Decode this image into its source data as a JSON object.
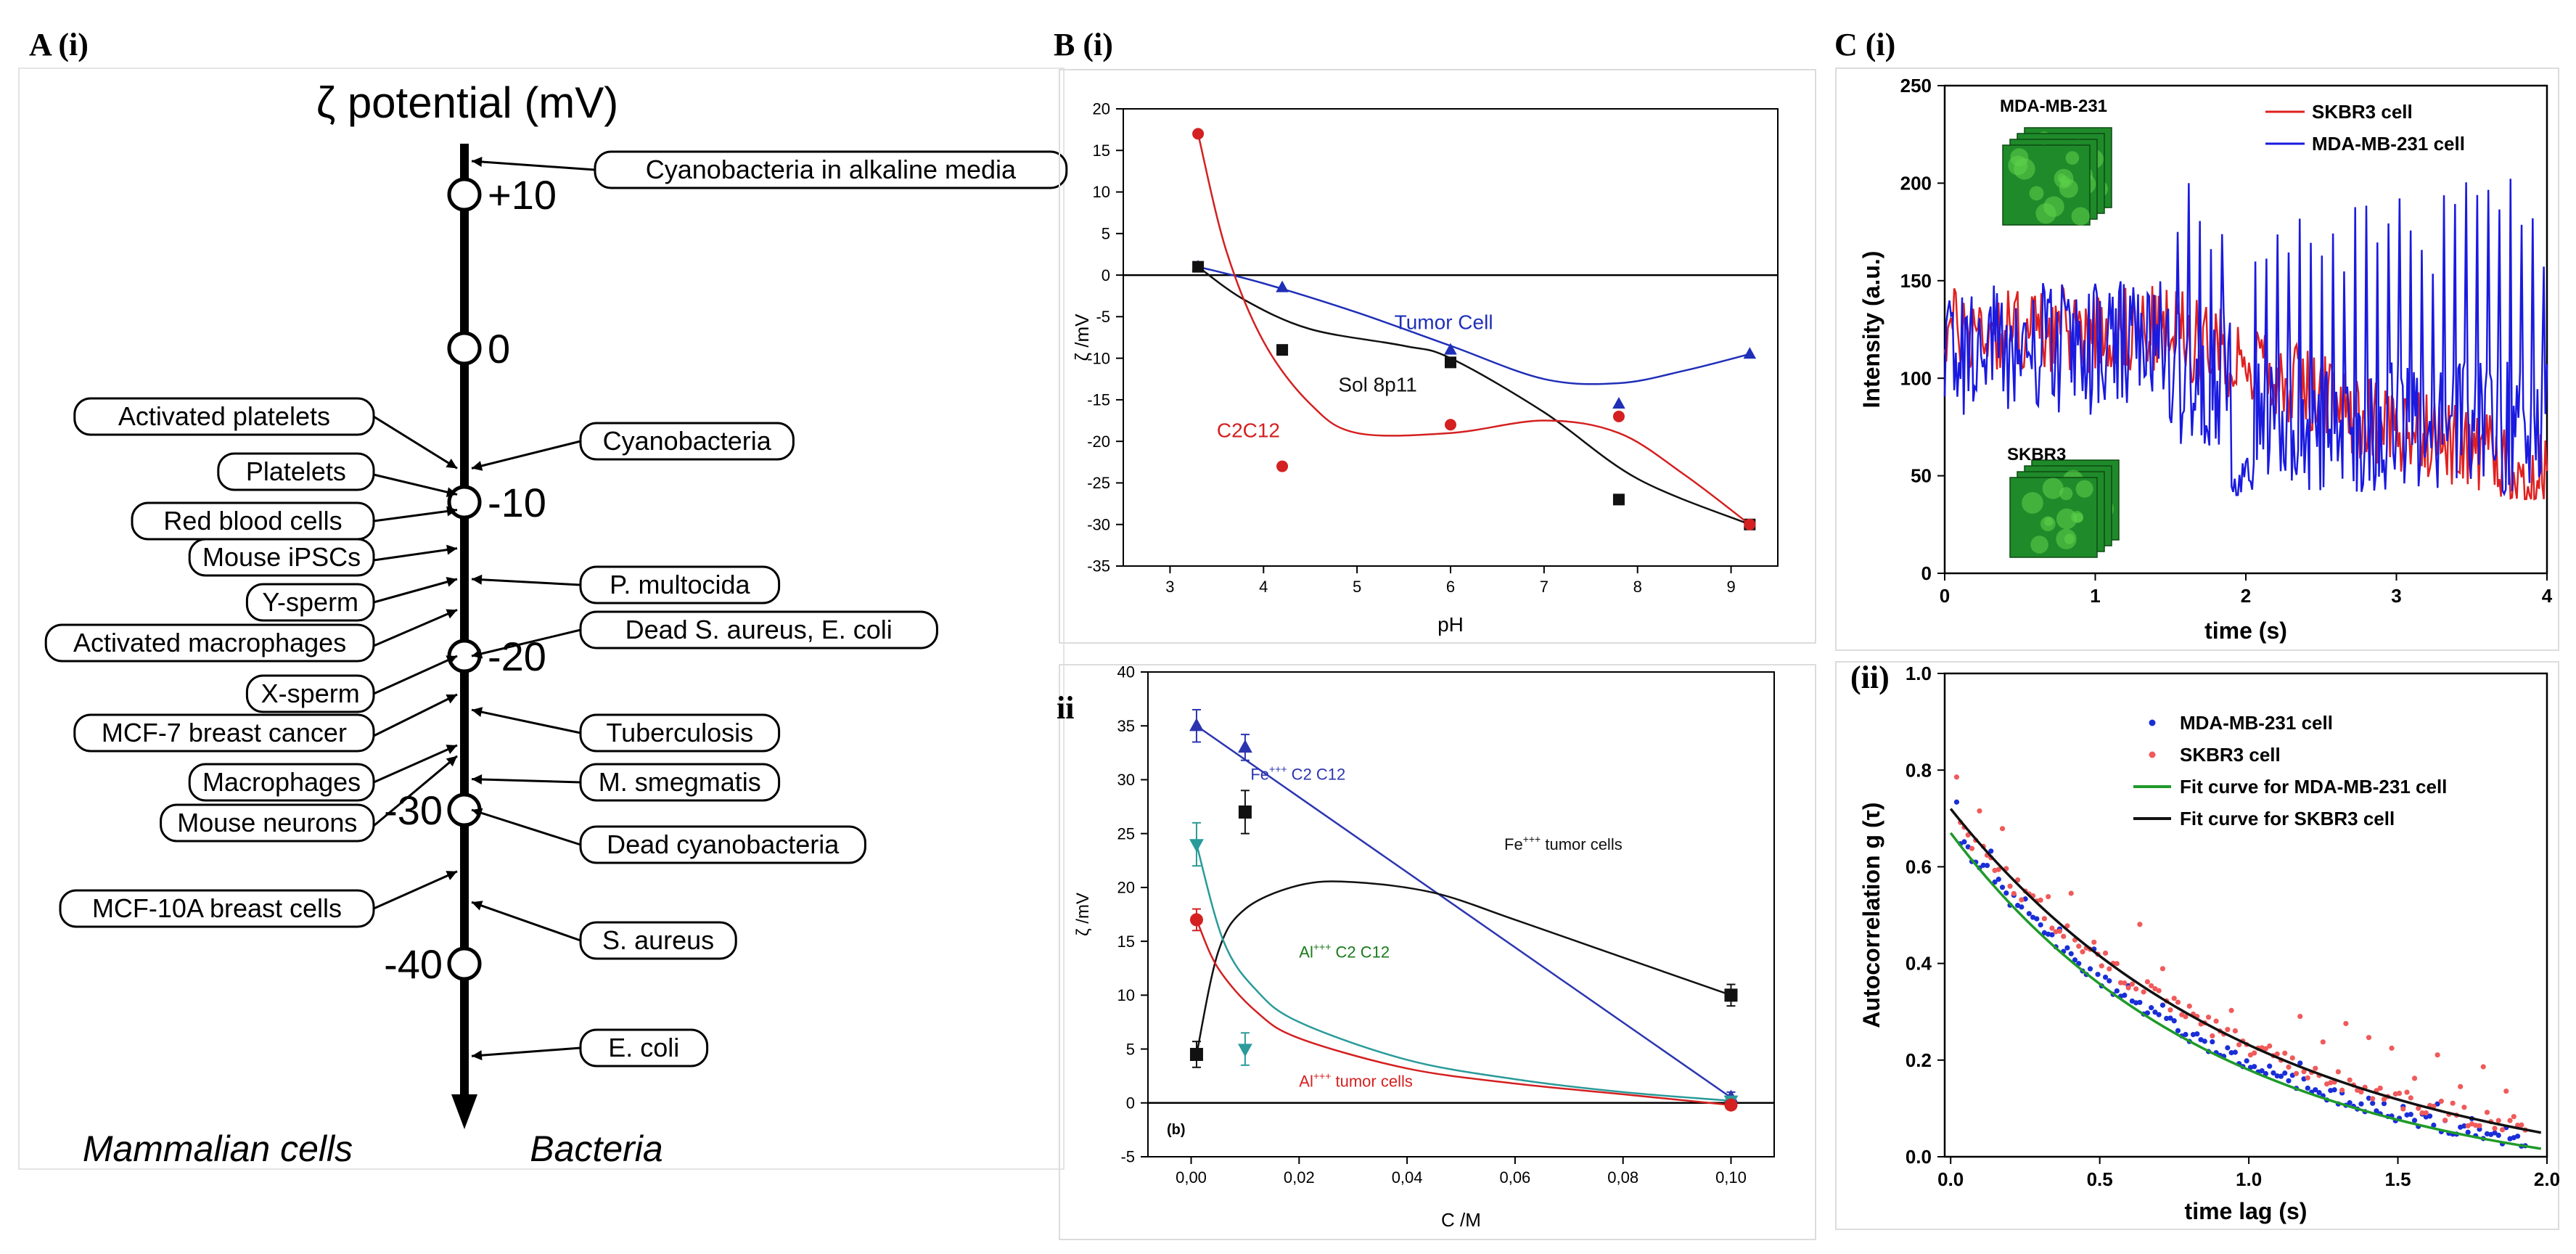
{
  "panel_a": {
    "label": "A (i)",
    "title": "ζ potential (mV)",
    "ticks": [
      {
        "value": 10,
        "label": "+10"
      },
      {
        "value": 0,
        "label": "0"
      },
      {
        "value": -10,
        "label": "-10"
      },
      {
        "value": -20,
        "label": "-20"
      },
      {
        "value": -30,
        "label": "-30"
      },
      {
        "value": -40,
        "label": "-40"
      }
    ],
    "mammalian": [
      {
        "label": "Activated platelets",
        "value": -7.8
      },
      {
        "label": "Platelets",
        "value": -9.5
      },
      {
        "label": "Red blood cells",
        "value": -10.5
      },
      {
        "label": "Mouse iPSCs",
        "value": -13
      },
      {
        "label": "Y-sperm",
        "value": -15
      },
      {
        "label": "Activated macrophages",
        "value": -17
      },
      {
        "label": "X-sperm",
        "value": -20
      },
      {
        "label": "MCF-7 breast cancer",
        "value": -22.5
      },
      {
        "label": "Macrophages",
        "value": -25.8
      },
      {
        "label": "Mouse neurons",
        "value": -26.5
      },
      {
        "label": "MCF-10A breast cells",
        "value": -34
      }
    ],
    "bacteria": [
      {
        "label": "Cyanobacteria in alkaline media",
        "value": 13
      },
      {
        "label": "Cyanobacteria",
        "value": -7.8
      },
      {
        "label": "P. multocida",
        "value": -15
      },
      {
        "label": "Dead S. aureus, E. coli",
        "value": -20
      },
      {
        "label": "Tuberculosis",
        "value": -23.5
      },
      {
        "label": "M. smegmatis",
        "value": -28
      },
      {
        "label": "Dead cyanobacteria",
        "value": -30
      },
      {
        "label": "S. aureus",
        "value": -36
      },
      {
        "label": "E. coli",
        "value": -46
      }
    ],
    "left_caption": "Mammalian cells",
    "right_caption": "Bacteria"
  },
  "panel_bi": {
    "label": "B (i)",
    "chart_data": {
      "type": "scatter",
      "xlabel": "pH",
      "ylabel": "ζ /mV",
      "xlim": [
        2.5,
        9.5
      ],
      "ylim": [
        -35,
        20
      ],
      "xticks": [
        3,
        4,
        5,
        6,
        7,
        8,
        9
      ],
      "yticks": [
        20,
        15,
        10,
        5,
        0,
        -5,
        -10,
        -15,
        -20,
        -25,
        -30,
        -35
      ],
      "series": [
        {
          "name": "Tumor Cell",
          "color": "#1f2fb8",
          "marker": "triangle",
          "x": [
            3.3,
            4.2,
            6,
            7.8,
            9.2
          ],
          "y": [
            1,
            -1.5,
            -9,
            -15.5,
            -9.5
          ],
          "curve": [
            [
              3.3,
              1
            ],
            [
              4,
              -1
            ],
            [
              5,
              -4.5
            ],
            [
              6,
              -8.5
            ],
            [
              7,
              -12.5
            ],
            [
              7.8,
              -13
            ],
            [
              8.5,
              -11.5
            ],
            [
              9.2,
              -9.5
            ]
          ]
        },
        {
          "name": "Sol 8p11",
          "color": "#111111",
          "marker": "square",
          "x": [
            3.3,
            4.2,
            6,
            7.8,
            9.2
          ],
          "y": [
            1,
            -9,
            -10.5,
            -27,
            -30
          ],
          "curve": [
            [
              3.3,
              1
            ],
            [
              3.8,
              -3
            ],
            [
              4.5,
              -6.5
            ],
            [
              5.5,
              -8.5
            ],
            [
              6,
              -10
            ],
            [
              7,
              -16.5
            ],
            [
              8,
              -24.5
            ],
            [
              9.2,
              -30
            ]
          ]
        },
        {
          "name": "C2C12",
          "color": "#d42020",
          "marker": "circle",
          "x": [
            3.3,
            4.2,
            6,
            7.8,
            9.2
          ],
          "y": [
            17,
            -23,
            -18,
            -17,
            -30
          ],
          "curve": [
            [
              3.3,
              17
            ],
            [
              3.6,
              3
            ],
            [
              4,
              -8
            ],
            [
              4.5,
              -15.5
            ],
            [
              5,
              -19
            ],
            [
              6,
              -19
            ],
            [
              7,
              -17.5
            ],
            [
              7.8,
              -19
            ],
            [
              8.5,
              -24
            ],
            [
              9.2,
              -30
            ]
          ]
        }
      ],
      "annotations": [
        {
          "text": "Tumor Cell",
          "x": 5.4,
          "y": -6.5,
          "color": "#1f2fb8"
        },
        {
          "text": "Sol 8p11",
          "x": 4.8,
          "y": -14,
          "color": "#111111"
        },
        {
          "text": "C2C12",
          "x": 3.5,
          "y": -19.5,
          "color": "#d42020"
        }
      ]
    }
  },
  "panel_bii": {
    "label": "ii",
    "sub_label": "(b)",
    "chart_data": {
      "type": "scatter",
      "xlabel": "C /M",
      "ylabel": "ζ /mV",
      "xlim": [
        -0.008,
        0.108
      ],
      "ylim": [
        -5,
        40
      ],
      "xticks": [
        {
          "v": 0,
          "l": "0,00"
        },
        {
          "v": 0.02,
          "l": "0,02"
        },
        {
          "v": 0.04,
          "l": "0,04"
        },
        {
          "v": 0.06,
          "l": "0,06"
        },
        {
          "v": 0.08,
          "l": "0,08"
        },
        {
          "v": 0.1,
          "l": "0,10"
        }
      ],
      "yticks": [
        40,
        35,
        30,
        25,
        20,
        15,
        10,
        5,
        0,
        -5
      ],
      "series": [
        {
          "name": "Fe+++ C2 C12",
          "color": "#2b35b0",
          "marker": "triangle",
          "x": [
            0.001,
            0.01,
            0.1
          ],
          "y": [
            35,
            33,
            0.5
          ],
          "err": [
            1.5,
            1.2,
            0.5
          ],
          "curve": [
            [
              0.001,
              35
            ],
            [
              0.1,
              0.5
            ]
          ]
        },
        {
          "name": "Fe+++ tumor cells",
          "color": "#111111",
          "marker": "square",
          "x": [
            0.001,
            0.01,
            0.1
          ],
          "y": [
            4.5,
            27,
            10
          ],
          "err": [
            1.2,
            2,
            1
          ],
          "curve": [
            [
              0.001,
              4.5
            ],
            [
              0.005,
              14
            ],
            [
              0.01,
              18
            ],
            [
              0.02,
              20.2
            ],
            [
              0.03,
              20.5
            ],
            [
              0.045,
              19.5
            ],
            [
              0.06,
              17
            ],
            [
              0.08,
              13.5
            ],
            [
              0.1,
              10
            ]
          ]
        },
        {
          "name": "Al+++ C2 C12",
          "color": "#2a9a9a",
          "marker": "triangle-down",
          "x": [
            0.001,
            0.01,
            0.1
          ],
          "y": [
            24,
            5,
            0.2
          ],
          "err": [
            2,
            1.5,
            0.4
          ],
          "curve": [
            [
              0.001,
              24
            ],
            [
              0.006,
              15
            ],
            [
              0.012,
              10.5
            ],
            [
              0.02,
              7.5
            ],
            [
              0.04,
              4
            ],
            [
              0.06,
              2.2
            ],
            [
              0.08,
              1
            ],
            [
              0.1,
              0.2
            ]
          ]
        },
        {
          "name": "Al+++ tumor cells",
          "color": "#d42020",
          "marker": "circle",
          "x": [
            0.001,
            0.1
          ],
          "y": [
            17,
            -0.2
          ],
          "err": [
            1,
            0.3
          ],
          "curve": [
            [
              0.001,
              17
            ],
            [
              0.005,
              12.5
            ],
            [
              0.012,
              8.5
            ],
            [
              0.02,
              6
            ],
            [
              0.04,
              3.2
            ],
            [
              0.06,
              1.8
            ],
            [
              0.08,
              0.8
            ],
            [
              0.1,
              -0.2
            ]
          ]
        }
      ],
      "annotations": [
        {
          "text": "Fe",
          "sup": "+++",
          "rest": "  C2 C12",
          "x": 0.011,
          "y": 30,
          "color": "#2b35b0"
        },
        {
          "text": "Fe",
          "sup": "+++",
          "rest": "  tumor cells",
          "x": 0.058,
          "y": 23.5,
          "color": "#111111"
        },
        {
          "text": "Al",
          "sup": "+++",
          "rest": "  C2 C12",
          "x": 0.02,
          "y": 13.5,
          "color": "#1a7a1a"
        },
        {
          "text": "Al",
          "sup": "+++",
          "rest": "  tumor cells",
          "x": 0.02,
          "y": 1.5,
          "color": "#d42020"
        }
      ]
    }
  },
  "panel_ci": {
    "label": "C (i)",
    "chart_data": {
      "type": "line",
      "xlabel": "time (s)",
      "ylabel": "Intensity (a.u.)",
      "xlim": [
        0,
        4
      ],
      "ylim": [
        0,
        250
      ],
      "xticks": [
        0,
        1,
        2,
        3,
        4
      ],
      "yticks": [
        0,
        50,
        100,
        150,
        200,
        250
      ],
      "series": [
        {
          "name": "SKBR3 cell",
          "color": "#e02020"
        },
        {
          "name": "MDA-MB-231 cell",
          "color": "#1a1ae0"
        }
      ],
      "insets": [
        {
          "label": "MDA-MB-231"
        },
        {
          "label": "SKBR3"
        }
      ]
    }
  },
  "panel_cii": {
    "label": "(ii)",
    "chart_data": {
      "type": "scatter",
      "xlabel": "time lag (s)",
      "ylabel": "Autocorrelation g (τ)",
      "xlim": [
        -0.02,
        2.0
      ],
      "ylim": [
        0,
        1.0
      ],
      "xticks": [
        {
          "v": 0,
          "l": "0.0"
        },
        {
          "v": 0.5,
          "l": "0.5"
        },
        {
          "v": 1,
          "l": "1.0"
        },
        {
          "v": 1.5,
          "l": "1.5"
        },
        {
          "v": 2,
          "l": "2.0"
        }
      ],
      "yticks": [
        {
          "v": 0,
          "l": "0.0"
        },
        {
          "v": 0.2,
          "l": "0.2"
        },
        {
          "v": 0.4,
          "l": "0.4"
        },
        {
          "v": 0.6,
          "l": "0.6"
        },
        {
          "v": 0.8,
          "l": "0.8"
        },
        {
          "v": 1.0,
          "l": "1.0"
        }
      ],
      "series": [
        {
          "name": "MDA-MB-231 cell",
          "color": "#1a2ed8",
          "kind": "points"
        },
        {
          "name": "SKBR3 cell",
          "color": "#f05a5a",
          "kind": "points"
        },
        {
          "name": "Fit curve for MDA-MB-231 cell",
          "color": "#1f9a2a",
          "kind": "line"
        },
        {
          "name": "Fit curve for SKBR3 cell",
          "color": "#111111",
          "kind": "line"
        }
      ]
    }
  }
}
